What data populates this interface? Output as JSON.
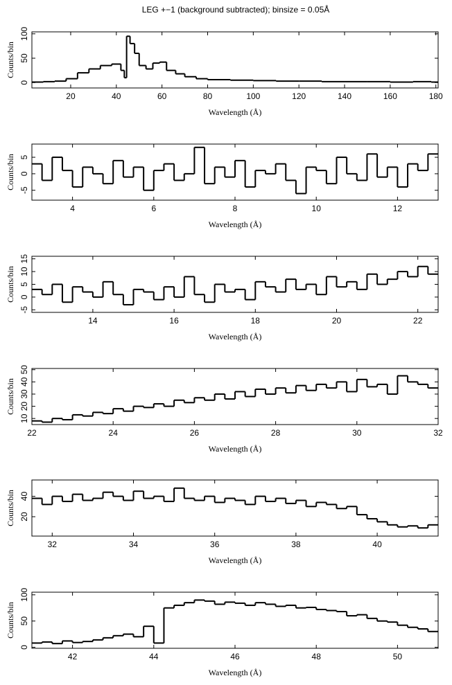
{
  "chart_data": [
    {
      "type": "line",
      "step": true,
      "title": "LEG +−1 (background subtracted); binsize = 0.05Å",
      "xlabel": "Wavelength (Å)",
      "ylabel": "Counts/bin",
      "color": "#000000",
      "xlim": [
        3,
        181
      ],
      "xticks": [
        20,
        40,
        60,
        80,
        100,
        120,
        140,
        160,
        180
      ],
      "ylim": [
        -11,
        104
      ],
      "yticks": [
        0,
        50,
        100
      ],
      "x": [
        3,
        8,
        13,
        18,
        23,
        28,
        33,
        38,
        42,
        43.5,
        44.5,
        46,
        48,
        50,
        53,
        56,
        59,
        62,
        66,
        70,
        75,
        80,
        90,
        100,
        110,
        120,
        130,
        140,
        150,
        160,
        170,
        178
      ],
      "values": [
        1,
        2,
        3,
        8,
        20,
        28,
        35,
        38,
        25,
        10,
        95,
        80,
        60,
        35,
        28,
        40,
        42,
        25,
        18,
        12,
        8,
        6,
        5,
        4,
        3,
        3,
        2,
        2,
        2,
        1,
        2,
        1
      ]
    },
    {
      "type": "line",
      "step": true,
      "xlabel": "Wavelength (Å)",
      "ylabel": "Counts/bin",
      "color": "#000000",
      "xlim": [
        3,
        13
      ],
      "xticks": [
        4,
        6,
        8,
        10,
        12
      ],
      "ylim": [
        -8,
        9
      ],
      "yticks": [
        -5,
        0,
        5
      ],
      "x": [
        3,
        3.25,
        3.5,
        3.75,
        4,
        4.25,
        4.5,
        4.75,
        5,
        5.25,
        5.5,
        5.75,
        6,
        6.25,
        6.5,
        6.75,
        7,
        7.25,
        7.5,
        7.75,
        8,
        8.25,
        8.5,
        8.75,
        9,
        9.25,
        9.5,
        9.75,
        10,
        10.25,
        10.5,
        10.75,
        11,
        11.25,
        11.5,
        11.75,
        12,
        12.25,
        12.5,
        12.75
      ],
      "values": [
        3,
        -2,
        5,
        1,
        -4,
        2,
        0,
        -3,
        4,
        -1,
        2,
        -5,
        1,
        3,
        -2,
        0,
        8,
        -3,
        2,
        -1,
        4,
        -4,
        1,
        0,
        3,
        -2,
        -6,
        2,
        1,
        -3,
        5,
        0,
        -2,
        6,
        -1,
        2,
        -4,
        3,
        1,
        6
      ]
    },
    {
      "type": "line",
      "step": true,
      "xlabel": "Wavelength (Å)",
      "ylabel": "Counts/bin",
      "color": "#000000",
      "xlim": [
        12.5,
        22.5
      ],
      "xticks": [
        14,
        16,
        18,
        20,
        22
      ],
      "ylim": [
        -6,
        16
      ],
      "yticks": [
        -5,
        0,
        5,
        10,
        15
      ],
      "x": [
        12.5,
        12.75,
        13,
        13.25,
        13.5,
        13.75,
        14,
        14.25,
        14.5,
        14.75,
        15,
        15.25,
        15.5,
        15.75,
        16,
        16.25,
        16.5,
        16.75,
        17,
        17.25,
        17.5,
        17.75,
        18,
        18.25,
        18.5,
        18.75,
        19,
        19.25,
        19.5,
        19.75,
        20,
        20.25,
        20.5,
        20.75,
        21,
        21.25,
        21.5,
        21.75,
        22,
        22.25
      ],
      "values": [
        3,
        1,
        5,
        -2,
        4,
        2,
        0,
        6,
        1,
        -3,
        3,
        2,
        -1,
        4,
        0,
        8,
        1,
        -2,
        5,
        2,
        3,
        -1,
        6,
        4,
        2,
        7,
        3,
        5,
        1,
        8,
        4,
        6,
        3,
        9,
        5,
        7,
        10,
        8,
        12,
        9
      ]
    },
    {
      "type": "line",
      "step": true,
      "xlabel": "Wavelength (Å)",
      "ylabel": "Counts/bin",
      "color": "#000000",
      "xlim": [
        22,
        32
      ],
      "xticks": [
        22,
        24,
        26,
        28,
        30,
        32
      ],
      "ylim": [
        5,
        51
      ],
      "yticks": [
        10,
        20,
        30,
        40,
        50
      ],
      "x": [
        22,
        22.25,
        22.5,
        22.75,
        23,
        23.25,
        23.5,
        23.75,
        24,
        24.25,
        24.5,
        24.75,
        25,
        25.25,
        25.5,
        25.75,
        26,
        26.25,
        26.5,
        26.75,
        27,
        27.25,
        27.5,
        27.75,
        28,
        28.25,
        28.5,
        28.75,
        29,
        29.25,
        29.5,
        29.75,
        30,
        30.25,
        30.5,
        30.75,
        31,
        31.25,
        31.5,
        31.75
      ],
      "values": [
        8,
        7,
        10,
        9,
        13,
        12,
        15,
        14,
        18,
        16,
        20,
        19,
        22,
        20,
        25,
        23,
        27,
        25,
        30,
        26,
        32,
        28,
        34,
        30,
        35,
        31,
        37,
        33,
        38,
        35,
        40,
        32,
        42,
        36,
        38,
        30,
        45,
        40,
        38,
        35
      ]
    },
    {
      "type": "line",
      "step": true,
      "xlabel": "Wavelength (Å)",
      "ylabel": "Counts/bin",
      "color": "#000000",
      "xlim": [
        31.5,
        41.5
      ],
      "xticks": [
        32,
        34,
        36,
        38,
        40
      ],
      "ylim": [
        1,
        56
      ],
      "yticks": [
        20,
        40
      ],
      "x": [
        31.5,
        31.75,
        32,
        32.25,
        32.5,
        32.75,
        33,
        33.25,
        33.5,
        33.75,
        34,
        34.25,
        34.5,
        34.75,
        35,
        35.25,
        35.5,
        35.75,
        36,
        36.25,
        36.5,
        36.75,
        37,
        37.25,
        37.5,
        37.75,
        38,
        38.25,
        38.5,
        38.75,
        39,
        39.25,
        39.5,
        39.75,
        40,
        40.25,
        40.5,
        40.75,
        41,
        41.25
      ],
      "values": [
        38,
        32,
        40,
        35,
        42,
        36,
        38,
        44,
        40,
        36,
        45,
        38,
        40,
        35,
        48,
        38,
        36,
        40,
        34,
        38,
        36,
        32,
        40,
        35,
        38,
        33,
        36,
        30,
        34,
        32,
        28,
        30,
        22,
        18,
        15,
        12,
        10,
        11,
        9,
        12
      ]
    },
    {
      "type": "line",
      "step": true,
      "xlabel": "Wavelength (Å)",
      "ylabel": "Counts/bin",
      "color": "#000000",
      "xlim": [
        41,
        51
      ],
      "xticks": [
        42,
        44,
        46,
        48,
        50
      ],
      "ylim": [
        -2,
        105
      ],
      "yticks": [
        0,
        50,
        100
      ],
      "x": [
        41,
        41.25,
        41.5,
        41.75,
        42,
        42.25,
        42.5,
        42.75,
        43,
        43.25,
        43.5,
        43.75,
        44,
        44.25,
        44.5,
        44.75,
        45,
        45.25,
        45.5,
        45.75,
        46,
        46.25,
        46.5,
        46.75,
        47,
        47.25,
        47.5,
        47.75,
        48,
        48.25,
        48.5,
        48.75,
        49,
        49.25,
        49.5,
        49.75,
        50,
        50.25,
        50.5,
        50.75
      ],
      "values": [
        8,
        10,
        7,
        12,
        9,
        11,
        14,
        18,
        22,
        25,
        20,
        40,
        8,
        75,
        80,
        85,
        90,
        88,
        82,
        86,
        84,
        80,
        85,
        82,
        78,
        80,
        75,
        76,
        72,
        70,
        68,
        60,
        62,
        55,
        50,
        48,
        42,
        38,
        35,
        30
      ]
    }
  ]
}
